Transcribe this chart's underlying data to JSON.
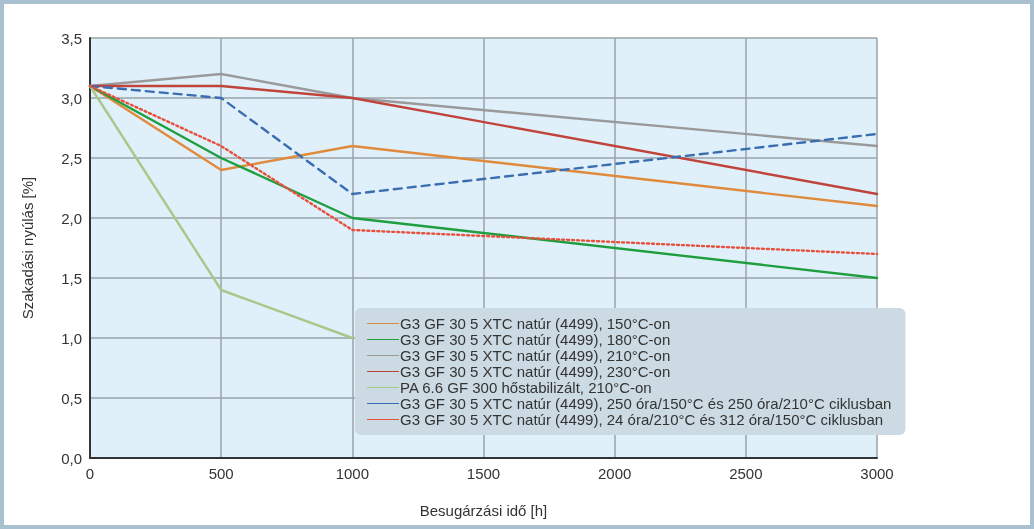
{
  "chart_data": {
    "type": "line",
    "xlabel": "Besugárzási idő [h]",
    "ylabel": "Szakadási nyúlás [%]",
    "x": [
      0,
      500,
      1000,
      3000
    ],
    "xlim": [
      0,
      3000
    ],
    "xticks": [
      0,
      500,
      1000,
      1500,
      2000,
      2500,
      3000
    ],
    "ylim": [
      0,
      3.5
    ],
    "yticks": [
      {
        "value": 0,
        "label": "0,0"
      },
      {
        "value": 0.5,
        "label": "0,5"
      },
      {
        "value": 1,
        "label": "1,0"
      },
      {
        "value": 1.5,
        "label": "1,5"
      },
      {
        "value": 2,
        "label": "2,0"
      },
      {
        "value": 2.5,
        "label": "2,5"
      },
      {
        "value": 3,
        "label": "3,0"
      },
      {
        "value": 3.5,
        "label": "3,5"
      }
    ],
    "grid": true,
    "legend": "bottom right",
    "marker": "none",
    "series": [
      {
        "name": "G3 GF 30 5 XTC natúr (4499), 150°C-on",
        "color": "#e08a3c",
        "line_style": "solid",
        "values": [
          3.1,
          2.4,
          2.6,
          2.1
        ]
      },
      {
        "name": "G3 GF 30 5 XTC natúr (4499), 180°C-on",
        "color": "#1e9e3e",
        "line_style": "solid",
        "values": [
          3.1,
          2.5,
          2.0,
          1.5
        ]
      },
      {
        "name": "G3 GF 30 5 XTC natúr (4499), 210°C-on",
        "color": "#9a9a9a",
        "line_style": "solid",
        "values": [
          3.1,
          3.2,
          3.0,
          2.6
        ]
      },
      {
        "name": "G3 GF 30 5 XTC natúr (4499), 230°C-on",
        "color": "#c0443c",
        "line_style": "solid",
        "values": [
          3.1,
          3.1,
          3.0,
          2.2
        ]
      },
      {
        "name": "PA 6.6 GF 300 hőstabilizált, 210°C-on",
        "color": "#a8c88a",
        "line_style": "solid",
        "values": [
          3.1,
          1.4,
          1.0,
          null
        ]
      },
      {
        "name": "G3 GF 30 5 XTC natúr (4499), 250 óra/150°C és 250 óra/210°C ciklusban",
        "color": "#3a6eb0",
        "line_style": "dashed",
        "values": [
          3.1,
          3.0,
          2.2,
          2.7
        ]
      },
      {
        "name": "G3 GF 30 5 XTC natúr (4499), 24 óra/210°C és 312 óra/150°C ciklusban",
        "color": "#e8503c",
        "line_style": "dotted",
        "values": [
          3.1,
          2.6,
          1.9,
          1.7
        ]
      }
    ]
  }
}
